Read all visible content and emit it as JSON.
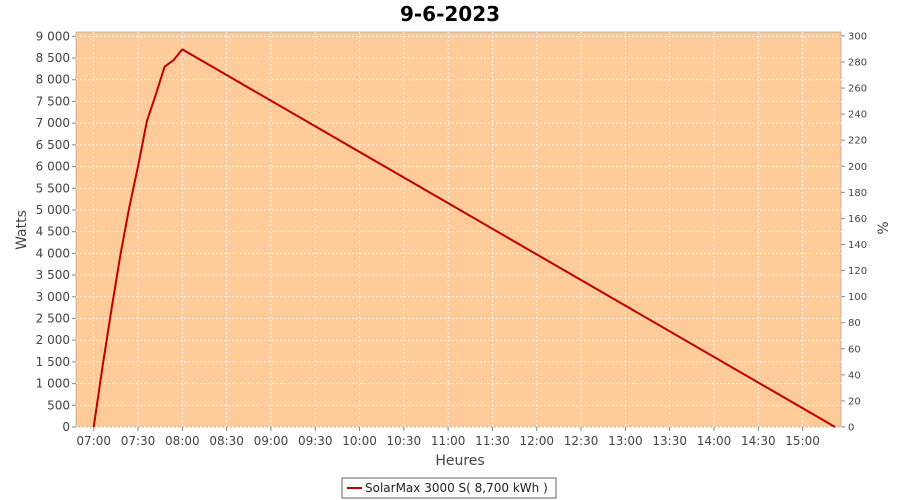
{
  "chart_data": {
    "type": "line",
    "title": "9-6-2023",
    "xlabel": "Heures",
    "ylabel": "Watts",
    "y2label": "%",
    "x_ticks": [
      "07:00",
      "07:30",
      "08:00",
      "08:30",
      "09:00",
      "09:30",
      "10:00",
      "10:30",
      "11:00",
      "11:30",
      "12:00",
      "12:30",
      "13:00",
      "13:30",
      "14:00",
      "14:30",
      "15:00"
    ],
    "y_ticks": [
      "0",
      "500",
      "1 000",
      "1 500",
      "2 000",
      "2 500",
      "3 000",
      "3 500",
      "4 000",
      "4 500",
      "5 000",
      "5 500",
      "6 000",
      "6 500",
      "7 000",
      "7 500",
      "8 000",
      "8 500",
      "9 000"
    ],
    "y2_ticks": [
      "0",
      "20",
      "40",
      "60",
      "80",
      "100",
      "120",
      "140",
      "160",
      "180",
      "200",
      "220",
      "240",
      "260",
      "280",
      "300"
    ],
    "xlim": [
      "06:48",
      "15:26"
    ],
    "ylim": [
      0,
      9100
    ],
    "y2lim": [
      0,
      303
    ],
    "grid": true,
    "legend_position": "bottom",
    "colors": {
      "plot_background": "#ffcc99",
      "series": "#c00000",
      "grid": "#ffffff"
    },
    "series": [
      {
        "name": "SolarMax 3000 S( 8,700 kWh )",
        "x": [
          "07:00",
          "07:06",
          "07:12",
          "07:18",
          "07:24",
          "07:30",
          "07:36",
          "07:42",
          "07:48",
          "07:54",
          "08:00",
          "15:22"
        ],
        "y": [
          0,
          1400,
          2700,
          3950,
          5050,
          6000,
          7050,
          7650,
          8300,
          8450,
          8700,
          0
        ]
      }
    ]
  }
}
